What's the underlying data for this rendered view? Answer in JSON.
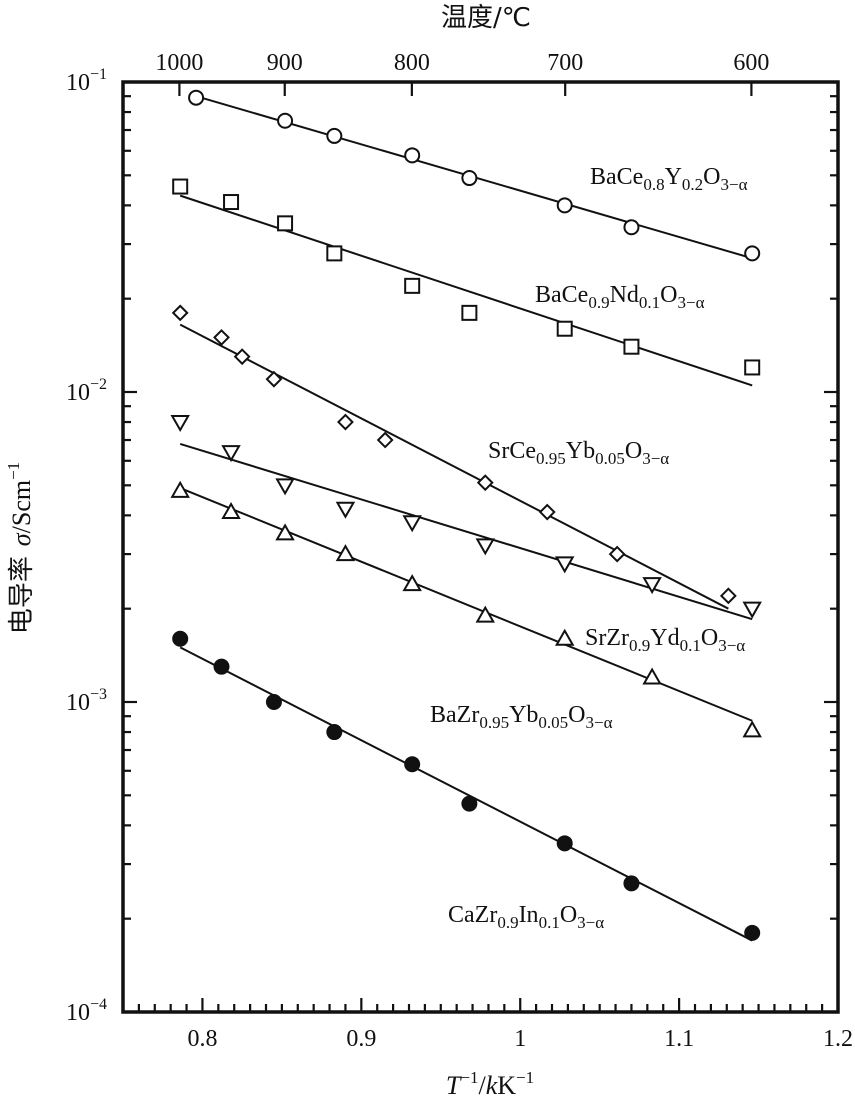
{
  "chart_data": {
    "type": "scatter",
    "xlabel": {
      "T": "T",
      "exp": "−1",
      "mid": "/",
      "k": "k",
      "K": "K",
      "exp2": "−1"
    },
    "ylabel": {
      "cn": "电导率",
      "sigma": "σ",
      "unit": "/Scm",
      "exp": "−1"
    },
    "top_axis_label": "温度/℃",
    "x_range": [
      0.75,
      1.2
    ],
    "y_range_log10": [
      -4,
      -1
    ],
    "y_scale": "log",
    "grid": false,
    "x_ticks": [
      {
        "value": 0.8,
        "label": "0.8"
      },
      {
        "value": 0.9,
        "label": "0.9"
      },
      {
        "value": 1.0,
        "label": "1"
      },
      {
        "value": 1.1,
        "label": "1.1"
      },
      {
        "value": 1.2,
        "label": "1.2"
      }
    ],
    "y_ticks": [
      {
        "exp": -1,
        "base": "10",
        "sup": "−1"
      },
      {
        "exp": -2,
        "base": "10",
        "sup": "−2"
      },
      {
        "exp": -3,
        "base": "10",
        "sup": "−3"
      },
      {
        "exp": -4,
        "base": "10",
        "sup": "−4"
      }
    ],
    "top_ticks": [
      {
        "label": "1000",
        "x": 0.7855
      },
      {
        "label": "900",
        "x": 0.8518
      },
      {
        "label": "800",
        "x": 0.9318
      },
      {
        "label": "700",
        "x": 1.0283
      },
      {
        "label": "600",
        "x": 1.1455
      }
    ],
    "series": [
      {
        "name": {
          "base": "BaCe",
          "parts": [
            [
              "0.8",
              "sub"
            ],
            [
              "Y",
              "n"
            ],
            [
              "0.2",
              "sub"
            ],
            [
              "O",
              "n"
            ],
            [
              "3−α",
              "sub"
            ]
          ]
        },
        "marker": "circle-open",
        "x": [
          0.796,
          0.852,
          0.883,
          0.932,
          0.968,
          1.028,
          1.07,
          1.146
        ],
        "y": [
          0.089,
          0.075,
          0.067,
          0.058,
          0.049,
          0.04,
          0.034,
          0.028
        ],
        "fit": {
          "x": [
            0.796,
            1.146
          ],
          "y": [
            0.09,
            0.027
          ]
        }
      },
      {
        "name": {
          "base": "BaCe",
          "parts": [
            [
              "0.9",
              "sub"
            ],
            [
              "Nd",
              "n"
            ],
            [
              "0.1",
              "sub"
            ],
            [
              "O",
              "n"
            ],
            [
              "3−α",
              "sub"
            ]
          ]
        },
        "marker": "square-open",
        "x": [
          0.786,
          0.818,
          0.852,
          0.883,
          0.932,
          0.968,
          1.028,
          1.07,
          1.146
        ],
        "y": [
          0.046,
          0.041,
          0.035,
          0.028,
          0.022,
          0.018,
          0.016,
          0.014,
          0.012
        ],
        "fit": {
          "x": [
            0.786,
            1.146
          ],
          "y": [
            0.043,
            0.0105
          ]
        }
      },
      {
        "name": {
          "base": "SrCe",
          "parts": [
            [
              "0.95",
              "sub"
            ],
            [
              "Yb",
              "n"
            ],
            [
              "0.05",
              "sub"
            ],
            [
              "O",
              "n"
            ],
            [
              "3−α",
              "sub"
            ]
          ]
        },
        "marker": "diamond-open",
        "x": [
          0.786,
          0.812,
          0.825,
          0.845,
          0.89,
          0.915,
          0.978,
          1.017,
          1.061,
          1.131
        ],
        "y": [
          0.018,
          0.015,
          0.013,
          0.011,
          0.008,
          0.007,
          0.0051,
          0.0041,
          0.003,
          0.0022
        ],
        "fit": {
          "x": [
            0.786,
            1.131
          ],
          "y": [
            0.0165,
            0.002
          ]
        }
      },
      {
        "name": {
          "base": "SrZr",
          "parts": [
            [
              "0.9",
              "sub"
            ],
            [
              "Yd",
              "n"
            ],
            [
              "0.1",
              "sub"
            ],
            [
              "O",
              "n"
            ],
            [
              "3−α",
              "sub"
            ]
          ]
        },
        "marker": "triangle-down-open",
        "x": [
          0.786,
          0.818,
          0.852,
          0.89,
          0.932,
          0.978,
          1.028,
          1.083,
          1.146
        ],
        "y": [
          0.008,
          0.0064,
          0.005,
          0.0042,
          0.0038,
          0.0032,
          0.0028,
          0.0024,
          0.002
        ],
        "fit": {
          "x": [
            0.786,
            1.146
          ],
          "y": [
            0.0068,
            0.00185
          ]
        }
      },
      {
        "name": {
          "base": "BaZr",
          "parts": [
            [
              "0.95",
              "sub"
            ],
            [
              "Yb",
              "n"
            ],
            [
              "0.05",
              "sub"
            ],
            [
              "O",
              "n"
            ],
            [
              "3−α",
              "sub"
            ]
          ]
        },
        "marker": "triangle-up-open",
        "x": [
          0.786,
          0.818,
          0.852,
          0.89,
          0.932,
          0.978,
          1.028,
          1.083,
          1.146
        ],
        "y": [
          0.0048,
          0.0041,
          0.0035,
          0.003,
          0.0024,
          0.0019,
          0.0016,
          0.0012,
          0.00081
        ],
        "fit": {
          "x": [
            0.786,
            1.146
          ],
          "y": [
            0.0049,
            0.00087
          ]
        }
      },
      {
        "name": {
          "base": "CaZr",
          "parts": [
            [
              "0.9",
              "sub"
            ],
            [
              "In",
              "n"
            ],
            [
              "0.1",
              "sub"
            ],
            [
              "O",
              "n"
            ],
            [
              "3−α",
              "sub"
            ]
          ]
        },
        "marker": "circle-filled",
        "x": [
          0.786,
          0.812,
          0.845,
          0.883,
          0.932,
          0.968,
          1.028,
          1.07,
          1.146
        ],
        "y": [
          0.0016,
          0.0013,
          0.001,
          0.0008,
          0.00063,
          0.00047,
          0.00035,
          0.00026,
          0.00018
        ],
        "fit": {
          "x": [
            0.786,
            1.146
          ],
          "y": [
            0.0015,
            0.00017
          ]
        }
      }
    ]
  }
}
